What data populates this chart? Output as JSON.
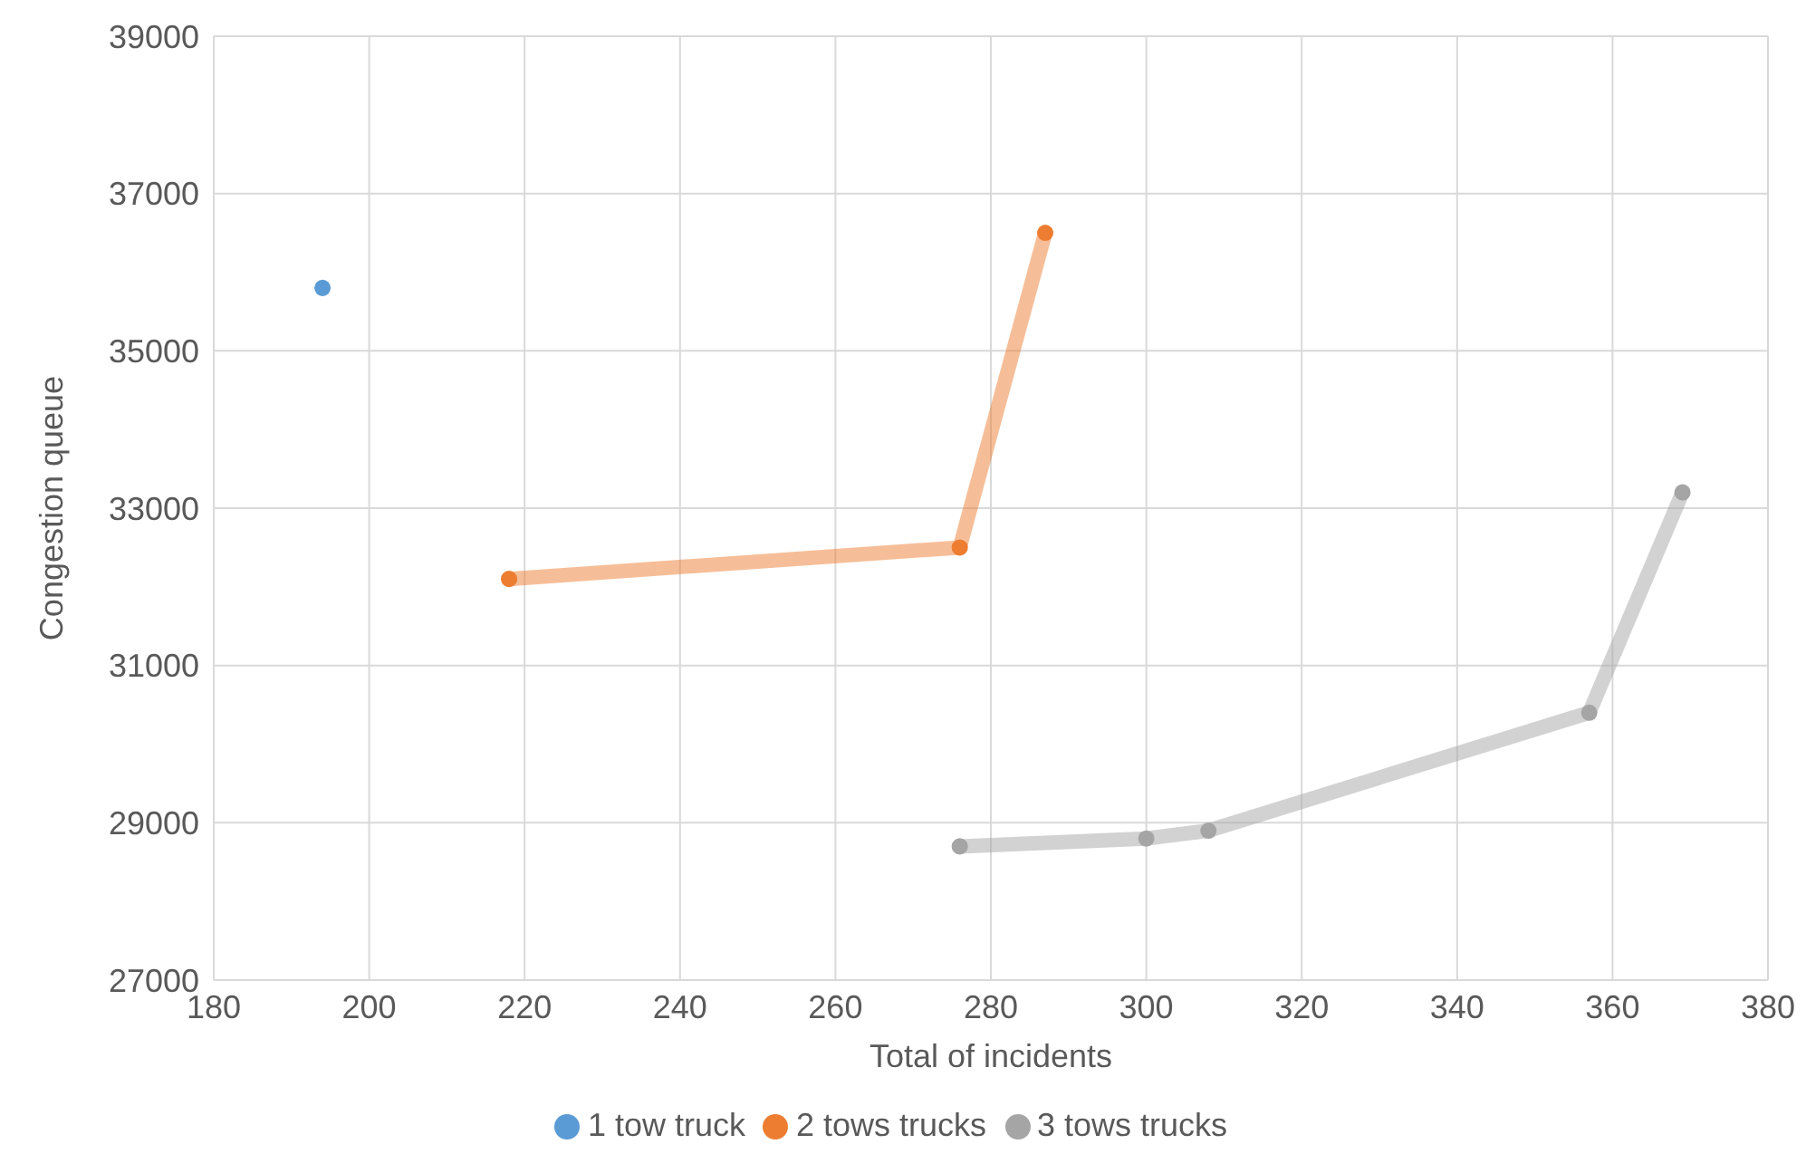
{
  "chart_data": {
    "type": "line",
    "xlabel": "Total of incidents",
    "ylabel": "Congestion queue",
    "xlim": [
      180,
      380
    ],
    "xticks": [
      180,
      200,
      220,
      240,
      260,
      280,
      300,
      320,
      340,
      360,
      380
    ],
    "ylim": [
      27000,
      39000
    ],
    "yticks": [
      27000,
      29000,
      31000,
      33000,
      35000,
      37000,
      39000
    ],
    "grid": true,
    "legend": "bottom",
    "marker": "circle",
    "line_style": "solid",
    "series": [
      {
        "name": "1 tow truck",
        "color": "#5b9bd5",
        "x": [
          194
        ],
        "values": [
          35800
        ]
      },
      {
        "name": "2 tows trucks",
        "color": "#ed7d31",
        "x": [
          218,
          276,
          287
        ],
        "values": [
          32100,
          32500,
          36500
        ]
      },
      {
        "name": "3 tows trucks",
        "color": "#a5a5a5",
        "x": [
          276,
          300,
          308,
          357,
          369
        ],
        "values": [
          28700,
          28800,
          28900,
          30400,
          33200
        ]
      }
    ]
  }
}
